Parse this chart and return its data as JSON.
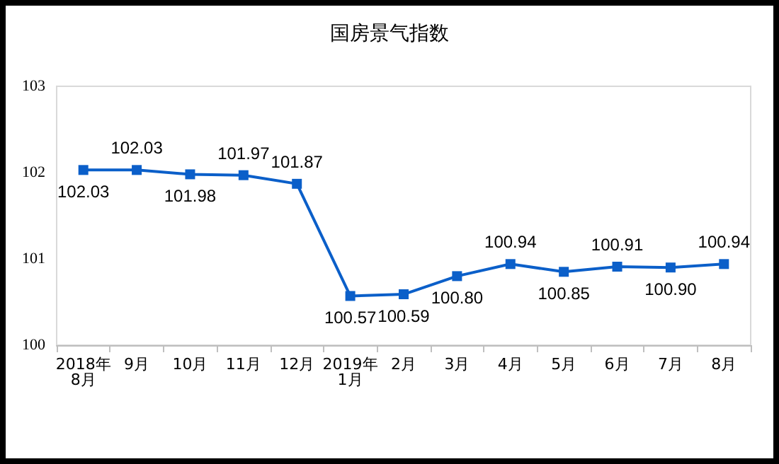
{
  "chart_data": {
    "type": "line",
    "title": "国房景气指数",
    "categories": [
      "2018年8月",
      "9月",
      "10月",
      "11月",
      "12月",
      "2019年1月",
      "2月",
      "3月",
      "4月",
      "5月",
      "6月",
      "7月",
      "8月"
    ],
    "series": [
      {
        "color": "#0b5fc9",
        "values": [
          102.03,
          102.03,
          101.98,
          101.97,
          101.87,
          100.57,
          100.59,
          100.8,
          100.94,
          100.85,
          100.91,
          100.9,
          100.94
        ],
        "value_labels": [
          "102.03",
          "102.03",
          "101.98",
          "101.97",
          "101.87",
          "100.57",
          "100.59",
          "100.80",
          "100.94",
          "100.85",
          "100.91",
          "100.90",
          "100.94"
        ]
      }
    ],
    "ylim": [
      100,
      103
    ],
    "yticks": [
      100,
      101,
      102,
      103
    ],
    "grid": false,
    "marker": "square",
    "line_style": "solid"
  }
}
